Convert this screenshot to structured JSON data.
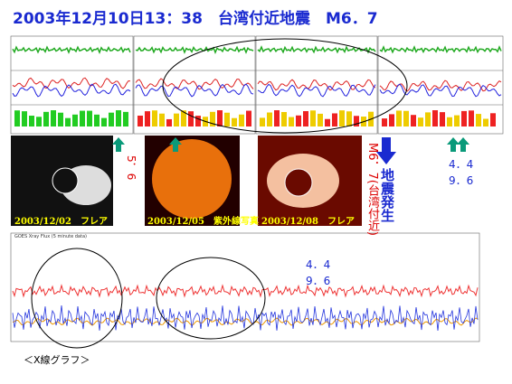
{
  "header": {
    "title": "2003年12月10日13：38　台湾付近地震　M6．7"
  },
  "annotations": {
    "left_value": "5．6",
    "right_values": [
      "4．4",
      "9．6"
    ],
    "middle_values": [
      "4．4",
      "9．6"
    ],
    "quake_magnitude": "M6．7(台湾付近)",
    "quake_event": "地震発生"
  },
  "images": [
    {
      "caption": "2003/12/02　フレア"
    },
    {
      "caption": "2003/12/05　紫外線写真"
    },
    {
      "caption": "2003/12/08　フレア"
    }
  ],
  "lower_chart": {
    "title": "GOES Xray Flux (5 minute data)"
  },
  "footer": "＜X線グラフ＞"
}
